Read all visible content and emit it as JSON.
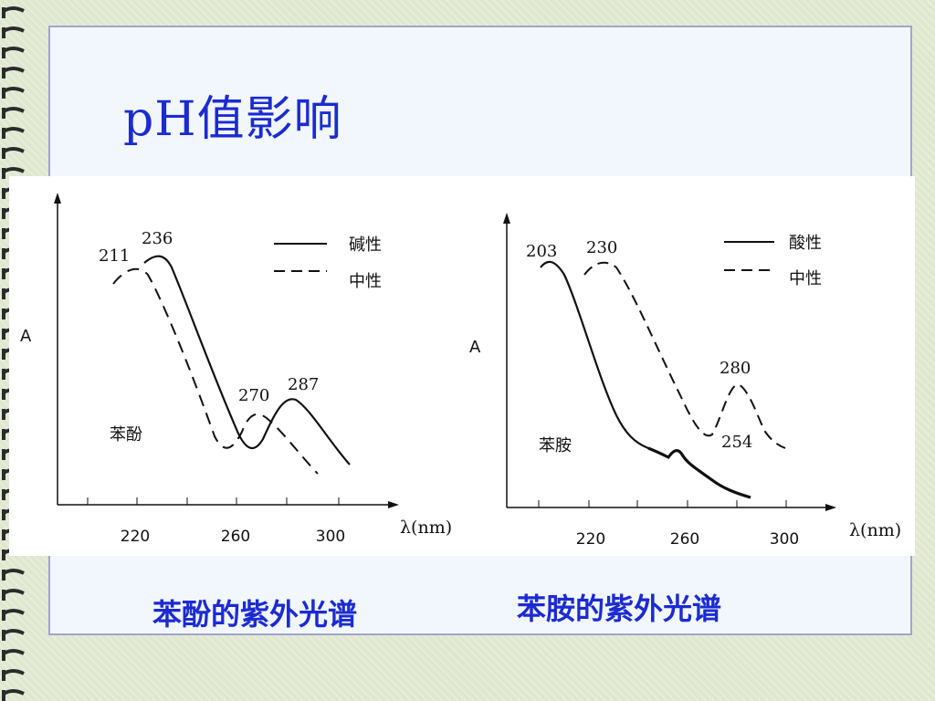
{
  "slide": {
    "title": "pH值影响",
    "caption_left": "苯酚的紫外光谱",
    "caption_right": "苯胺的紫外光谱"
  },
  "chart_data": [
    {
      "type": "line",
      "compound_label": "苯酚",
      "ylabel": "A",
      "xlabel": "λ(nm)",
      "x_ticks": [
        "220",
        "260",
        "300"
      ],
      "series": [
        {
          "name": "碱性",
          "style": "solid"
        },
        {
          "name": "中性",
          "style": "dashed"
        }
      ],
      "peak_labels": [
        "211",
        "236",
        "270",
        "287"
      ]
    },
    {
      "type": "line",
      "compound_label": "苯胺",
      "ylabel": "A",
      "xlabel": "λ(nm)",
      "x_ticks": [
        "220",
        "260",
        "300"
      ],
      "series": [
        {
          "name": "酸性",
          "style": "solid"
        },
        {
          "name": "中性",
          "style": "dashed"
        }
      ],
      "peak_labels": [
        "203",
        "230",
        "280",
        "254"
      ]
    }
  ],
  "colors": {
    "title": "#1c2bd0",
    "panel_border": "#9fa6cf",
    "panel_bg": "#f1f7fd"
  }
}
